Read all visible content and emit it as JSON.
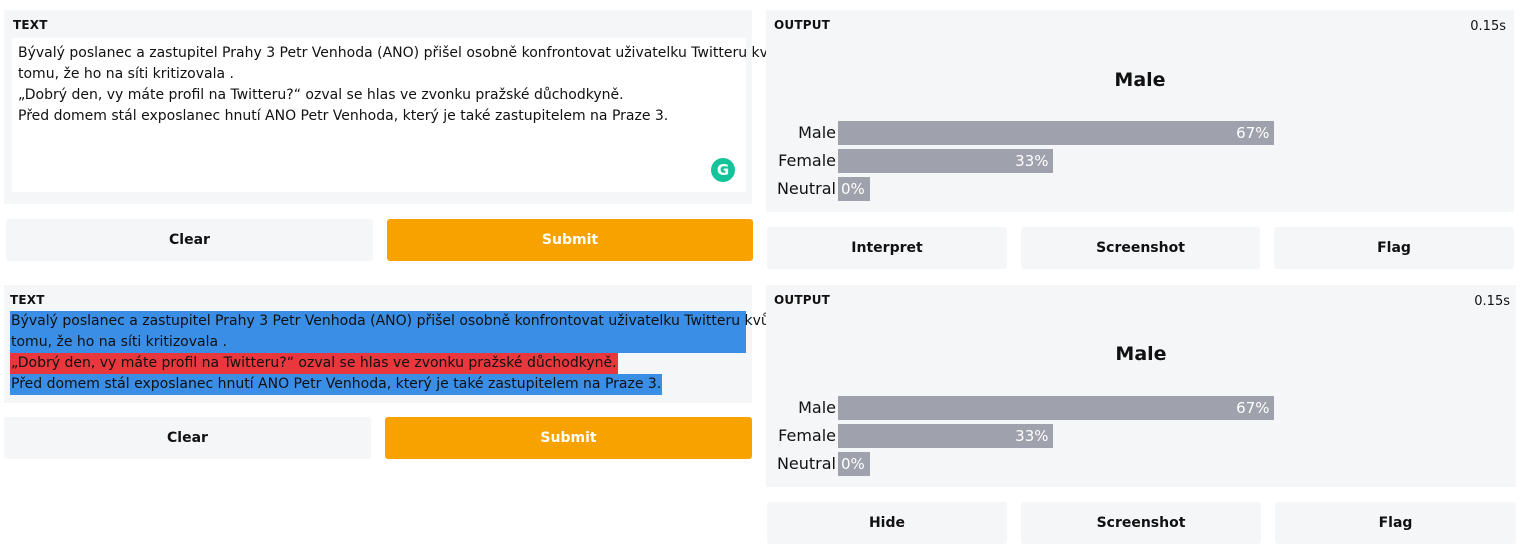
{
  "top": {
    "input": {
      "label": "TEXT",
      "lines": [
        "Bývalý poslanec a zastupitel Prahy 3 Petr Venhoda (ANO) přišel osobně konfrontovat uživatelku Twitteru kvůli",
        "tomu, že ho na síti kritizovala .",
        "„Dobrý den, vy máte profil na Twitteru?“ ozval se hlas ve zvonku pražské důchodkyně.",
        "Před domem stál exposlanec hnutí ANO Petr Venhoda, který je také zastupitelem na Praze 3."
      ],
      "grammarly_icon": "grammarly-icon"
    },
    "buttons": {
      "clear": "Clear",
      "submit": "Submit"
    },
    "output": {
      "label": "OUTPUT",
      "timer": "0.15s",
      "title": "Male",
      "bars": [
        {
          "label": "Male",
          "value": 0.67,
          "text": "67%"
        },
        {
          "label": "Female",
          "value": 0.33,
          "text": "33%"
        },
        {
          "label": "Neutral",
          "value": 0.0,
          "text": "0%"
        }
      ]
    },
    "actions": {
      "interpret": "Interpret",
      "screenshot": "Screenshot",
      "flag": "Flag"
    }
  },
  "bottom": {
    "interpretation": {
      "label": "TEXT",
      "lines": [
        {
          "text": "Bývalý poslanec a zastupitel Prahy 3 Petr Venhoda (ANO) přišel osobně konfrontovat uživatelku Twitteru kvůli",
          "color": "#3a8ee6"
        },
        {
          "text": "tomu, že ho na síti kritizovala .",
          "color": "#3a8ee6"
        },
        {
          "text": "„Dobrý den, vy máte profil na Twitteru?“ ozval se hlas ve zvonku pražské důchodkyně.",
          "color": "#e8383d"
        },
        {
          "text": "Před domem stál exposlanec hnutí ANO Petr Venhoda, který je také zastupitelem na Praze 3.",
          "color": "#3a8ee6"
        }
      ]
    },
    "buttons": {
      "clear": "Clear",
      "submit": "Submit"
    },
    "output": {
      "label": "OUTPUT",
      "timer": "0.15s",
      "title": "Male",
      "bars": [
        {
          "label": "Male",
          "value": 0.67,
          "text": "67%"
        },
        {
          "label": "Female",
          "value": 0.33,
          "text": "33%"
        },
        {
          "label": "Neutral",
          "value": 0.0,
          "text": "0%"
        }
      ]
    },
    "actions": {
      "hide": "Hide",
      "screenshot": "Screenshot",
      "flag": "Flag"
    }
  }
}
